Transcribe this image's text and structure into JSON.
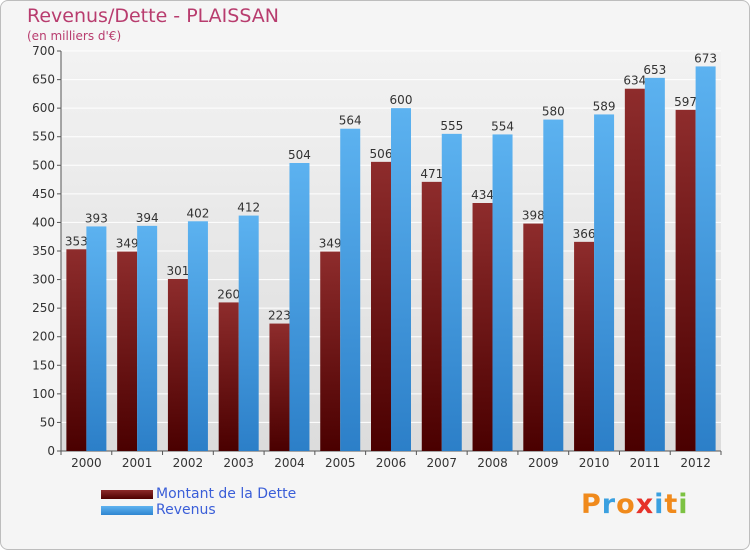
{
  "chart_data": {
    "type": "bar",
    "title": "Revenus/Dette - PLAISSAN",
    "subtitle": "(en milliers d'€)",
    "categories": [
      "2000",
      "2001",
      "2002",
      "2003",
      "2004",
      "2005",
      "2006",
      "2007",
      "2008",
      "2009",
      "2010",
      "2011",
      "2012"
    ],
    "series": [
      {
        "name": "Montant de la Dette",
        "values": [
          353,
          349,
          301,
          260,
          223,
          349,
          506,
          471,
          434,
          398,
          366,
          634,
          597
        ],
        "color": "#7a1a1a"
      },
      {
        "name": "Revenus",
        "values": [
          393,
          394,
          402,
          412,
          504,
          564,
          600,
          555,
          554,
          580,
          589,
          653,
          673
        ],
        "color": "#4aa3e8"
      }
    ],
    "y_ticks": [
      "0",
      "50",
      "100",
      "150",
      "200",
      "250",
      "300",
      "350",
      "400",
      "450",
      "500",
      "550",
      "600",
      "650",
      "700"
    ],
    "ylim": [
      0,
      700
    ],
    "grid": true,
    "legend_position": "bottom-left"
  },
  "logo": {
    "letters": [
      {
        "char": "P",
        "color": "#f08a1c"
      },
      {
        "char": "r",
        "color": "#3aa0e0"
      },
      {
        "char": "o",
        "color": "#f08a1c"
      },
      {
        "char": "x",
        "color": "#e6322a"
      },
      {
        "char": "i",
        "color": "#3aa0e0"
      },
      {
        "char": "t",
        "color": "#f08a1c"
      },
      {
        "char": "i",
        "color": "#7cc242"
      }
    ]
  }
}
